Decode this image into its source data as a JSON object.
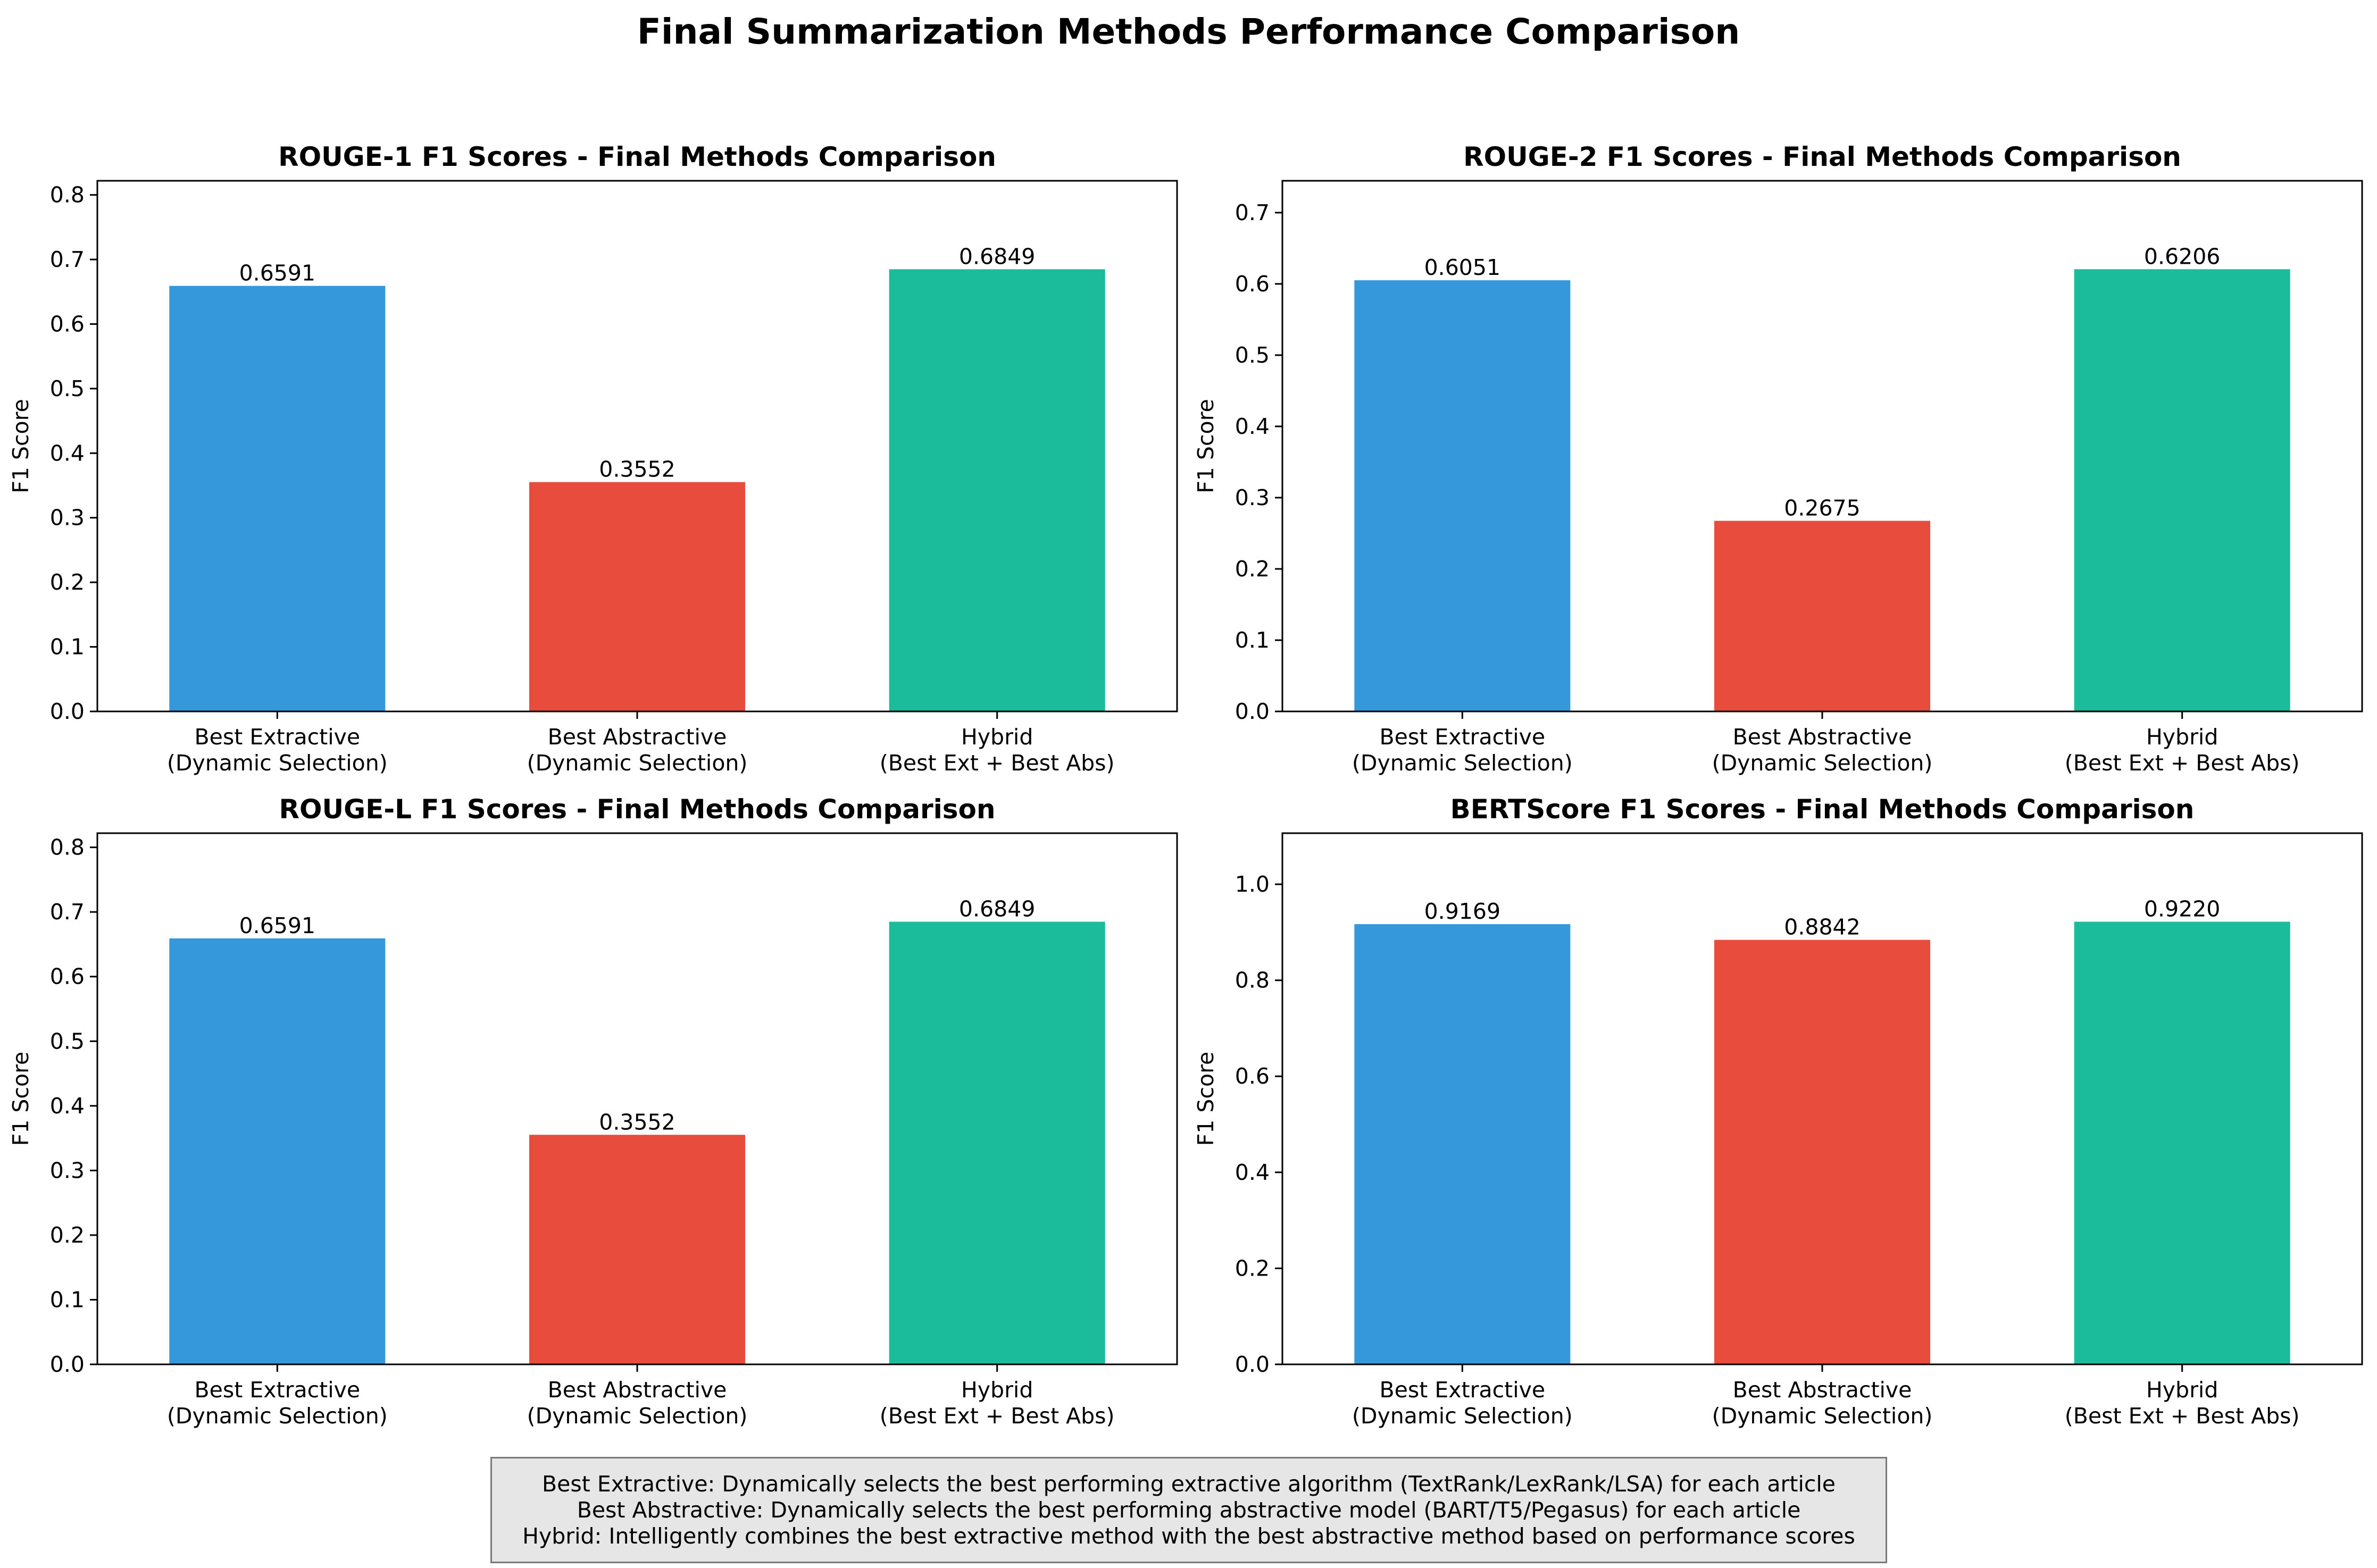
{
  "figure_title": "Final Summarization Methods Performance Comparison",
  "notes": [
    "Best Extractive: Dynamically selects the best performing extractive algorithm (TextRank/LexRank/LSA) for each article",
    "Best Abstractive: Dynamically selects the best performing abstractive model (BART/T5/Pegasus) for each article",
    "Hybrid: Intelligently combines the best extractive method with the best abstractive method based on performance scores"
  ],
  "colors": {
    "extractive": "#3498db",
    "abstractive": "#e74c3c",
    "hybrid": "#1abc9c"
  },
  "chart_data": [
    {
      "type": "bar",
      "title": "ROUGE-1 F1 Scores - Final Methods Comparison",
      "ylabel": "F1 Score",
      "xlabel": "",
      "categories": [
        [
          "Best Extractive",
          "(Dynamic Selection)"
        ],
        [
          "Best Abstractive",
          "(Dynamic Selection)"
        ],
        [
          "Hybrid",
          "(Best Ext + Best Abs)"
        ]
      ],
      "values": [
        0.6591,
        0.3552,
        0.6849
      ],
      "value_labels": [
        "0.6591",
        "0.3552",
        "0.6849"
      ],
      "colors": [
        "#3498db",
        "#e74c3c",
        "#1abc9c"
      ],
      "ylim": [
        0,
        0.8219
      ],
      "yticks": [
        0.0,
        0.1,
        0.2,
        0.3,
        0.4,
        0.5,
        0.6,
        0.7,
        0.8
      ],
      "ytick_labels": [
        "0.0",
        "0.1",
        "0.2",
        "0.3",
        "0.4",
        "0.5",
        "0.6",
        "0.7",
        "0.8"
      ],
      "grid": false
    },
    {
      "type": "bar",
      "title": "ROUGE-2 F1 Scores - Final Methods Comparison",
      "ylabel": "F1 Score",
      "xlabel": "",
      "categories": [
        [
          "Best Extractive",
          "(Dynamic Selection)"
        ],
        [
          "Best Abstractive",
          "(Dynamic Selection)"
        ],
        [
          "Hybrid",
          "(Best Ext + Best Abs)"
        ]
      ],
      "values": [
        0.6051,
        0.2675,
        0.6206
      ],
      "value_labels": [
        "0.6051",
        "0.2675",
        "0.6206"
      ],
      "colors": [
        "#3498db",
        "#e74c3c",
        "#1abc9c"
      ],
      "ylim": [
        0,
        0.7447
      ],
      "yticks": [
        0.0,
        0.1,
        0.2,
        0.3,
        0.4,
        0.5,
        0.6,
        0.7
      ],
      "ytick_labels": [
        "0.0",
        "0.1",
        "0.2",
        "0.3",
        "0.4",
        "0.5",
        "0.6",
        "0.7"
      ],
      "grid": false
    },
    {
      "type": "bar",
      "title": "ROUGE-L F1 Scores - Final Methods Comparison",
      "ylabel": "F1 Score",
      "xlabel": "",
      "categories": [
        [
          "Best Extractive",
          "(Dynamic Selection)"
        ],
        [
          "Best Abstractive",
          "(Dynamic Selection)"
        ],
        [
          "Hybrid",
          "(Best Ext + Best Abs)"
        ]
      ],
      "values": [
        0.6591,
        0.3552,
        0.6849
      ],
      "value_labels": [
        "0.6591",
        "0.3552",
        "0.6849"
      ],
      "colors": [
        "#3498db",
        "#e74c3c",
        "#1abc9c"
      ],
      "ylim": [
        0,
        0.8219
      ],
      "yticks": [
        0.0,
        0.1,
        0.2,
        0.3,
        0.4,
        0.5,
        0.6,
        0.7,
        0.8
      ],
      "ytick_labels": [
        "0.0",
        "0.1",
        "0.2",
        "0.3",
        "0.4",
        "0.5",
        "0.6",
        "0.7",
        "0.8"
      ],
      "grid": false
    },
    {
      "type": "bar",
      "title": "BERTScore F1 Scores - Final Methods Comparison",
      "ylabel": "F1 Score",
      "xlabel": "",
      "categories": [
        [
          "Best Extractive",
          "(Dynamic Selection)"
        ],
        [
          "Best Abstractive",
          "(Dynamic Selection)"
        ],
        [
          "Hybrid",
          "(Best Ext + Best Abs)"
        ]
      ],
      "values": [
        0.9169,
        0.8842,
        0.922
      ],
      "value_labels": [
        "0.9169",
        "0.8842",
        "0.9220"
      ],
      "colors": [
        "#3498db",
        "#e74c3c",
        "#1abc9c"
      ],
      "ylim": [
        0,
        1.1064
      ],
      "yticks": [
        0.0,
        0.2,
        0.4,
        0.6,
        0.8,
        1.0
      ],
      "ytick_labels": [
        "0.0",
        "0.2",
        "0.4",
        "0.6",
        "0.8",
        "1.0"
      ],
      "grid": false
    }
  ]
}
